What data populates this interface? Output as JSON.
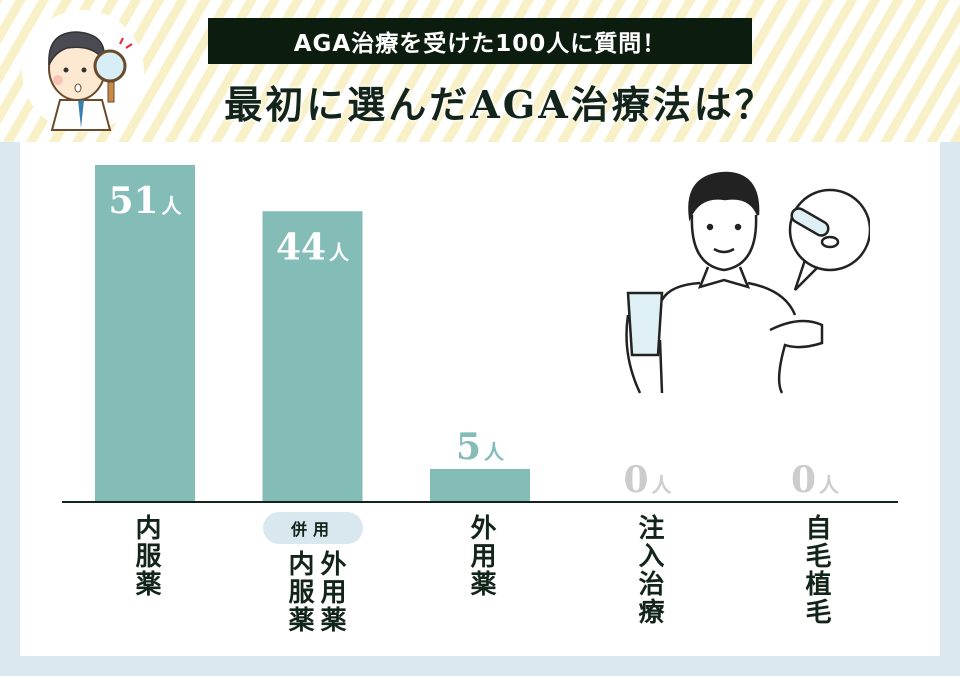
{
  "header": {
    "subtitle": "AGA治療を受けた100人に質問！",
    "title": "最初に選んだAGA治療法は？"
  },
  "colors": {
    "bar": "#84bcb8",
    "zero": "#cccccc",
    "text": "#13251a",
    "badge": "#d9e8ee"
  },
  "chart_data": {
    "type": "bar",
    "title": "最初に選んだAGA治療法は？",
    "categories": [
      "内服薬",
      "内服薬 外用薬",
      "外用薬",
      "注入治療",
      "自毛植毛"
    ],
    "values": [
      51,
      44,
      5,
      0,
      0
    ],
    "unit": "人",
    "data_labels": [
      "51",
      "44",
      "5",
      "0",
      "0"
    ],
    "badge": "併用",
    "ylim": [
      0,
      51
    ],
    "grid": false
  }
}
